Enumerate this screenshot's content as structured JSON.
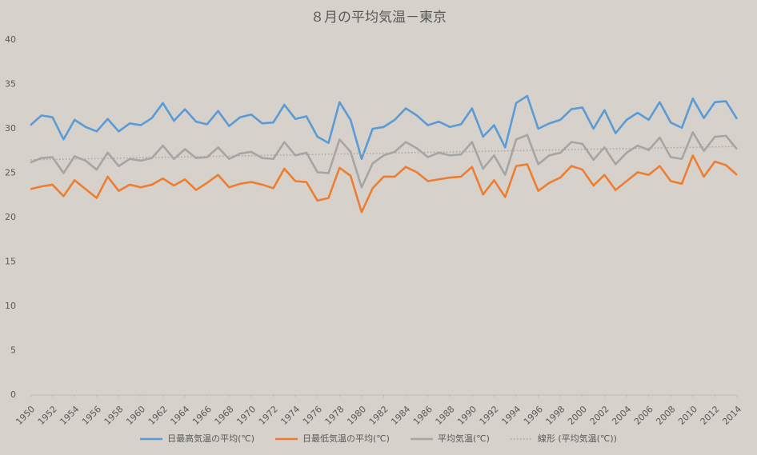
{
  "chart_data": {
    "type": "line",
    "title": "８月の平均気温－東京",
    "x": [
      1950,
      1951,
      1952,
      1953,
      1954,
      1955,
      1956,
      1957,
      1958,
      1959,
      1960,
      1961,
      1962,
      1963,
      1964,
      1965,
      1966,
      1967,
      1968,
      1969,
      1970,
      1971,
      1972,
      1973,
      1974,
      1975,
      1976,
      1977,
      1978,
      1979,
      1980,
      1981,
      1982,
      1983,
      1984,
      1985,
      1986,
      1987,
      1988,
      1989,
      1990,
      1991,
      1992,
      1993,
      1994,
      1995,
      1996,
      1997,
      1998,
      1999,
      2000,
      2001,
      2002,
      2003,
      2004,
      2005,
      2006,
      2007,
      2008,
      2009,
      2010,
      2011,
      2012,
      2013,
      2014
    ],
    "xlim": [
      1950,
      2014
    ],
    "xticks": [
      1950,
      1952,
      1954,
      1956,
      1958,
      1960,
      1962,
      1964,
      1966,
      1968,
      1970,
      1972,
      1974,
      1976,
      1978,
      1980,
      1982,
      1984,
      1986,
      1988,
      1990,
      1992,
      1994,
      1996,
      1998,
      2000,
      2002,
      2004,
      2006,
      2008,
      2010,
      2012,
      2014
    ],
    "ylim": [
      0,
      40
    ],
    "yticks": [
      0,
      5,
      10,
      15,
      20,
      25,
      30,
      35,
      40
    ],
    "grid": false,
    "legend": "bottom",
    "series": [
      {
        "name": "日最高気温の平均(℃)",
        "color": "#5b9bd5",
        "values": [
          30.4,
          31.5,
          31.3,
          28.8,
          31.0,
          30.2,
          29.7,
          31.1,
          29.7,
          30.6,
          30.4,
          31.2,
          32.9,
          30.9,
          32.2,
          30.8,
          30.5,
          32.0,
          30.3,
          31.3,
          31.6,
          30.6,
          30.7,
          32.7,
          31.1,
          31.4,
          29.1,
          28.4,
          33.0,
          31.0,
          26.6,
          30.0,
          30.2,
          31.0,
          32.3,
          31.5,
          30.4,
          30.8,
          30.2,
          30.5,
          32.3,
          29.1,
          30.4,
          27.9,
          32.9,
          33.7,
          30.0,
          30.6,
          31.0,
          32.2,
          32.4,
          30.0,
          32.1,
          29.5,
          31.0,
          31.8,
          31.0,
          33.0,
          30.7,
          30.1,
          33.4,
          31.2,
          33.0,
          33.1,
          31.1
        ]
      },
      {
        "name": "日最低気温の平均(℃)",
        "color": "#ed7d31",
        "values": [
          23.2,
          23.5,
          23.7,
          22.4,
          24.2,
          23.2,
          22.2,
          24.6,
          23.0,
          23.7,
          23.4,
          23.7,
          24.4,
          23.6,
          24.3,
          23.1,
          23.9,
          24.8,
          23.4,
          23.8,
          24.0,
          23.7,
          23.3,
          25.5,
          24.1,
          24.0,
          21.9,
          22.2,
          25.6,
          24.7,
          20.6,
          23.3,
          24.6,
          24.6,
          25.7,
          25.1,
          24.1,
          24.3,
          24.5,
          24.6,
          25.7,
          22.6,
          24.2,
          22.3,
          25.8,
          26.0,
          23.0,
          23.9,
          24.5,
          25.8,
          25.4,
          23.6,
          24.8,
          23.1,
          24.1,
          25.1,
          24.8,
          25.8,
          24.1,
          23.8,
          27.0,
          24.6,
          26.3,
          25.9,
          24.8
        ]
      },
      {
        "name": "平均気温(℃)",
        "color": "#a5a5a5",
        "values": [
          26.2,
          26.7,
          26.8,
          25.0,
          26.9,
          26.4,
          25.4,
          27.3,
          25.8,
          26.6,
          26.4,
          26.7,
          28.1,
          26.6,
          27.7,
          26.7,
          26.8,
          27.9,
          26.6,
          27.2,
          27.4,
          26.7,
          26.6,
          28.5,
          27.0,
          27.3,
          25.1,
          25.0,
          28.8,
          27.4,
          23.4,
          26.1,
          27.0,
          27.4,
          28.5,
          27.8,
          26.8,
          27.3,
          27.0,
          27.1,
          28.5,
          25.5,
          27.0,
          24.8,
          28.8,
          29.3,
          26.0,
          27.0,
          27.3,
          28.5,
          28.3,
          26.5,
          27.9,
          26.0,
          27.3,
          28.1,
          27.6,
          29.0,
          26.8,
          26.6,
          29.6,
          27.5,
          29.1,
          29.2,
          27.7
        ]
      }
    ],
    "trendline": {
      "name": "線形 (平均気温(℃))",
      "color": "#a5a5a5",
      "x": [
        1950,
        2014
      ],
      "values": [
        26.5,
        28.0
      ]
    }
  }
}
